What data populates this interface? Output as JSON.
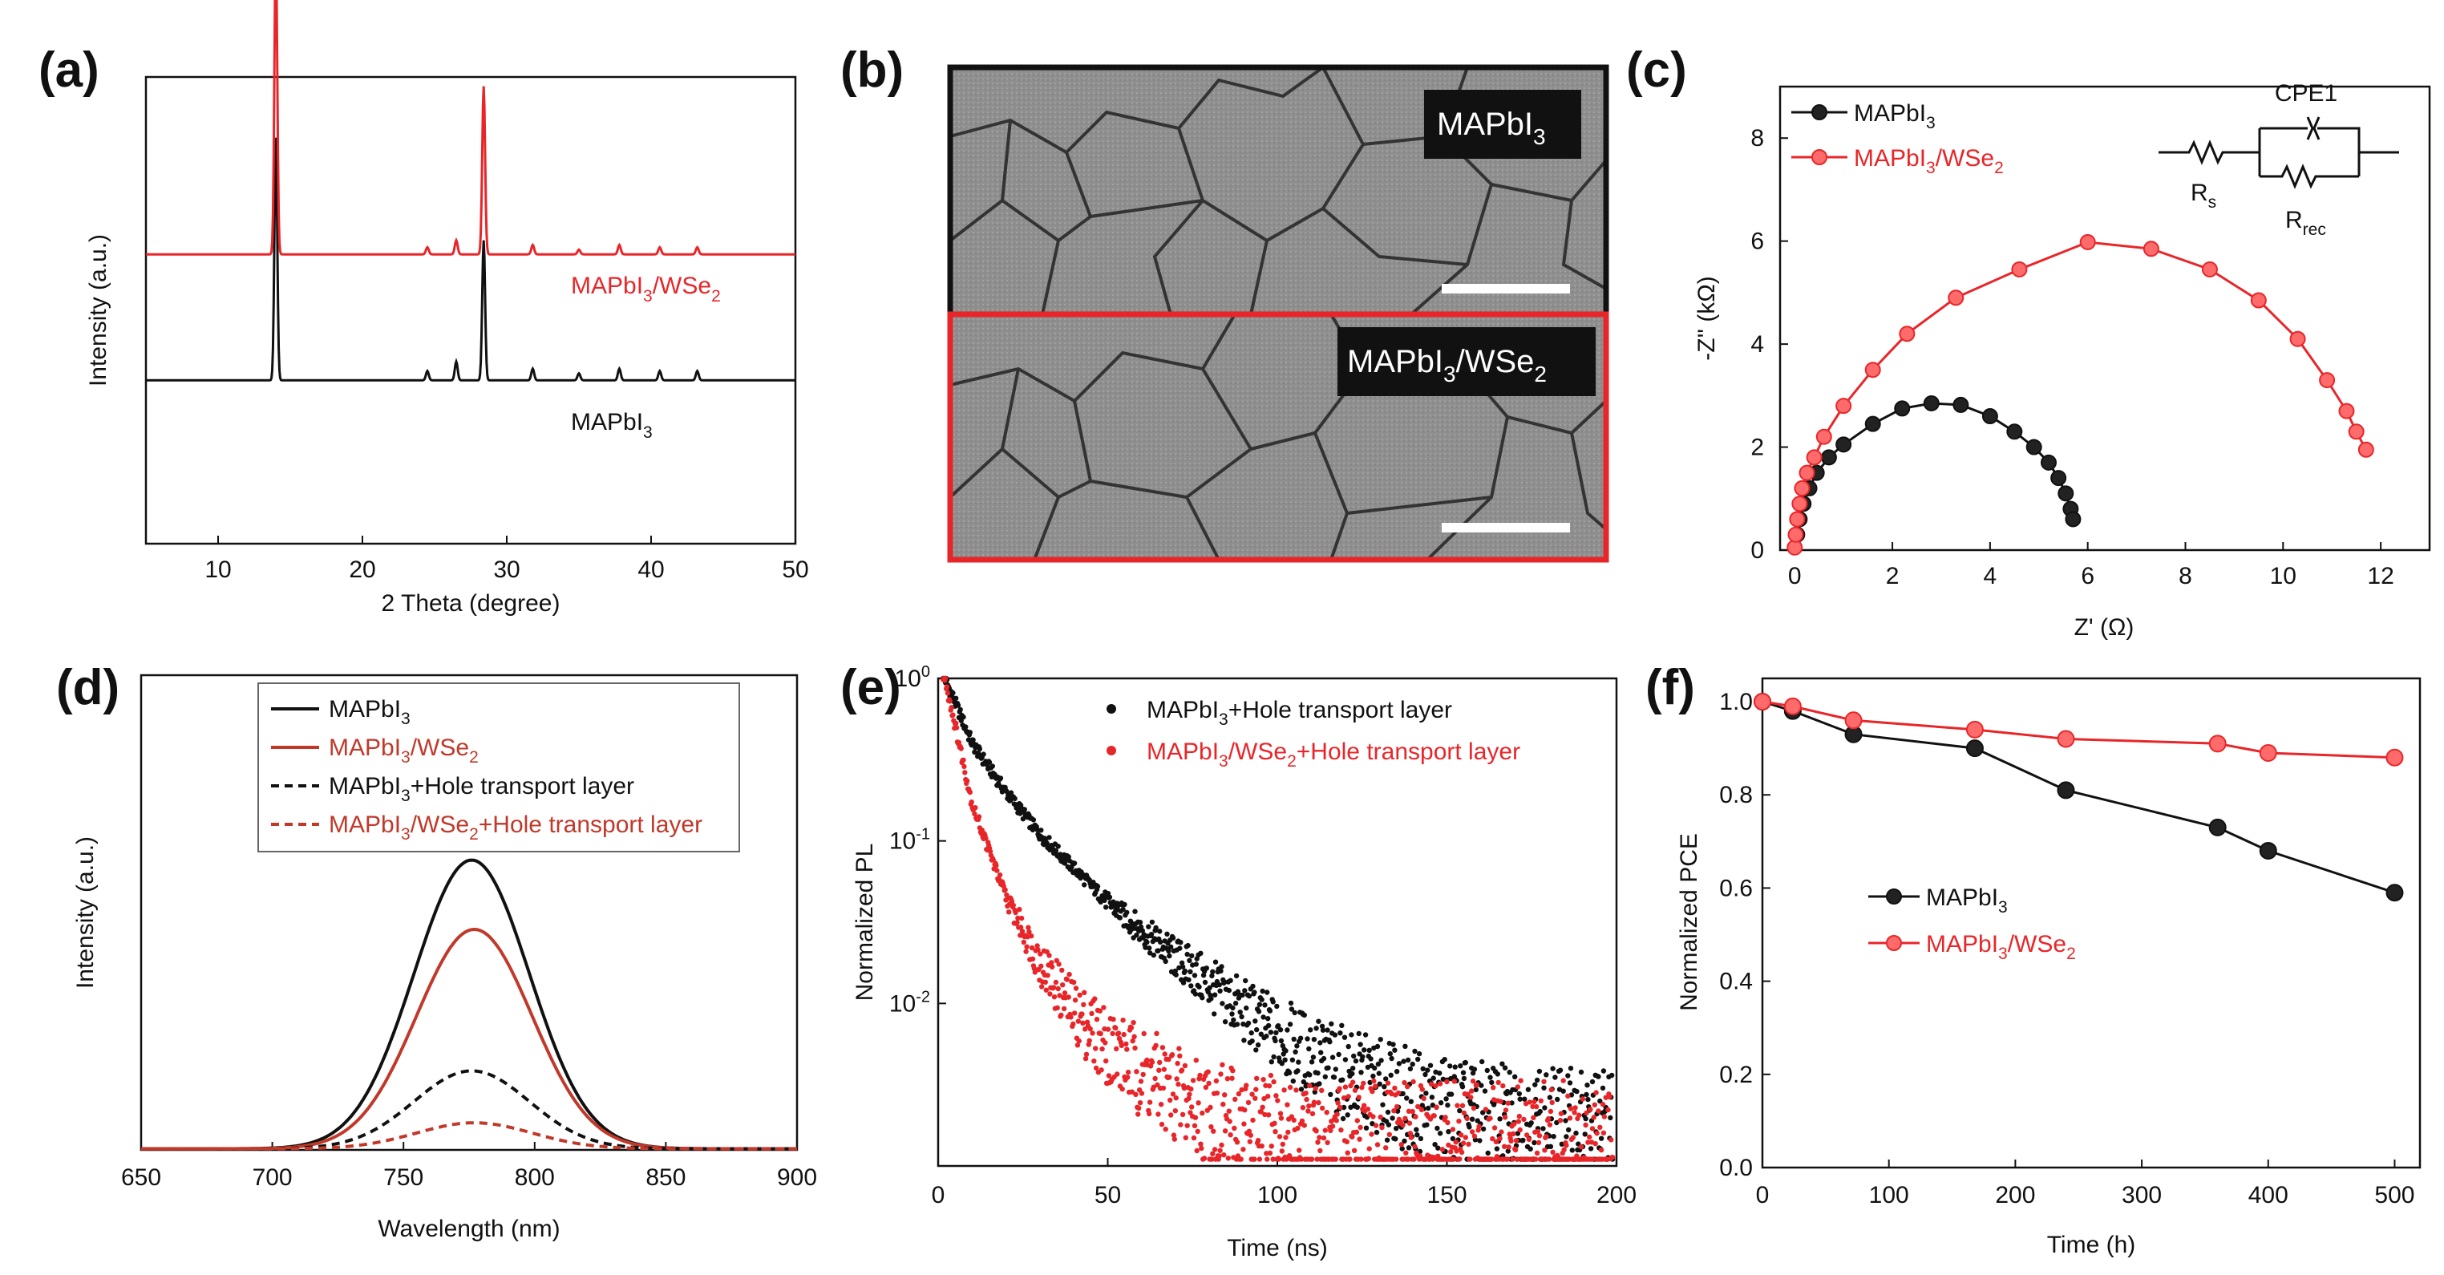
{
  "colors": {
    "black": "#111111",
    "red": "#e8262a",
    "dark_red": "#c0392b",
    "sem_label_bg": "#111111"
  },
  "panels": {
    "a": "(a)",
    "b": "(b)",
    "c": "(c)",
    "d": "(d)",
    "e": "(e)",
    "f": "(f)"
  },
  "sem_images": {
    "top": {
      "label": "MAPbI",
      "sub": "3",
      "frame_color": "#111111"
    },
    "bottom": {
      "label": "MAPbI",
      "sub1": "3",
      "mid": "/WSe",
      "sub2": "2",
      "frame_color": "#e8262a"
    }
  },
  "chart_data": [
    {
      "id": "a",
      "type": "line",
      "title": "",
      "xlabel": "2 Theta (degree)",
      "ylabel": "Intensity (a.u.)",
      "xlim": [
        5,
        50
      ],
      "xticks": [
        10,
        20,
        30,
        40,
        50
      ],
      "series": [
        {
          "name": "MAPbI3",
          "label_main": "MAPbI",
          "label_sub": "3",
          "color": "#111111",
          "baseline": 0.35,
          "peaks": [
            [
              14.0,
              0.52
            ],
            [
              24.5,
              0.02
            ],
            [
              26.5,
              0.04
            ],
            [
              28.4,
              0.3
            ],
            [
              31.8,
              0.025
            ],
            [
              35.0,
              0.015
            ],
            [
              37.8,
              0.025
            ],
            [
              40.6,
              0.02
            ],
            [
              43.2,
              0.02
            ]
          ]
        },
        {
          "name": "MAPbI3/WSe2",
          "label_main": "MAPbI",
          "label_sub": "3",
          "label_mid": "/WSe",
          "label_sub2": "2",
          "color": "#e8262a",
          "baseline": 0.62,
          "peaks": [
            [
              14.0,
              0.66
            ],
            [
              24.5,
              0.015
            ],
            [
              26.5,
              0.03
            ],
            [
              28.4,
              0.36
            ],
            [
              31.8,
              0.02
            ],
            [
              35.0,
              0.01
            ],
            [
              37.8,
              0.02
            ],
            [
              40.6,
              0.015
            ],
            [
              43.2,
              0.015
            ]
          ]
        }
      ]
    },
    {
      "id": "c",
      "type": "scatter",
      "title": "",
      "xlabel": "Z' (Ω)",
      "ylabel": "-Z'' (kΩ)",
      "xlim": [
        -0.3,
        13
      ],
      "ylim": [
        0,
        9
      ],
      "xticks": [
        0,
        2,
        4,
        6,
        8,
        10,
        12
      ],
      "yticks": [
        0,
        2,
        4,
        6,
        8
      ],
      "circuit": {
        "top": "CPE1",
        "left_main": "R",
        "left_sub": "s",
        "right_main": "R",
        "right_sub": "rec"
      },
      "series": [
        {
          "name": "MAPbI3",
          "label_main": "MAPbI",
          "label_sub": "3",
          "color": "#111111",
          "x": [
            0.05,
            0.1,
            0.18,
            0.3,
            0.45,
            0.7,
            1.0,
            1.6,
            2.2,
            2.8,
            3.4,
            4.0,
            4.5,
            4.9,
            5.2,
            5.4,
            5.55,
            5.65,
            5.7
          ],
          "y": [
            0.3,
            0.6,
            0.9,
            1.2,
            1.5,
            1.8,
            2.05,
            2.45,
            2.75,
            2.85,
            2.82,
            2.6,
            2.3,
            2.0,
            1.7,
            1.4,
            1.1,
            0.8,
            0.6
          ]
        },
        {
          "name": "MAPbI3/WSe2",
          "label_main": "MAPbI",
          "label_sub": "3",
          "label_mid": "/WSe",
          "label_sub2": "2",
          "color": "#e8262a",
          "x": [
            0.0,
            0.02,
            0.05,
            0.1,
            0.15,
            0.25,
            0.4,
            0.6,
            1.0,
            1.6,
            2.3,
            3.3,
            4.6,
            6.0,
            7.3,
            8.5,
            9.5,
            10.3,
            10.9,
            11.3,
            11.5,
            11.7
          ],
          "y": [
            0.05,
            0.3,
            0.6,
            0.9,
            1.2,
            1.5,
            1.8,
            2.2,
            2.8,
            3.5,
            4.2,
            4.9,
            5.45,
            5.98,
            5.85,
            5.45,
            4.85,
            4.1,
            3.3,
            2.7,
            2.3,
            1.95
          ]
        }
      ]
    },
    {
      "id": "d",
      "type": "line",
      "title": "",
      "xlabel": "Wavelength (nm)",
      "ylabel": "Intensity (a.u.)",
      "xlim": [
        650,
        900
      ],
      "xticks": [
        650,
        700,
        750,
        800,
        850,
        900
      ],
      "series": [
        {
          "name": "MAPbI3",
          "label_main": "MAPbI",
          "label_sub": "3",
          "color": "#111111",
          "style": "solid",
          "center": 776,
          "sigma": 22,
          "amplitude": 1.0
        },
        {
          "name": "MAPbI3/WSe2",
          "label_main": "MAPbI",
          "label_sub": "3",
          "label_mid": "/WSe",
          "label_sub2": "2",
          "color": "#c0392b",
          "style": "solid",
          "center": 777,
          "sigma": 22,
          "amplitude": 0.76
        },
        {
          "name": "MAPbI3+Hole transport layer",
          "label_main": "MAPbI",
          "label_sub": "3",
          "label_tail": "+Hole transport layer",
          "color": "#111111",
          "style": "dashed",
          "center": 776,
          "sigma": 22,
          "amplitude": 0.27
        },
        {
          "name": "MAPbI3/WSe2+Hole transport layer",
          "label_main": "MAPbI",
          "label_sub": "3",
          "label_mid": "/WSe",
          "label_sub2": "2",
          "label_tail": "+Hole transport layer",
          "color": "#c0392b",
          "style": "dashed",
          "center": 777,
          "sigma": 22,
          "amplitude": 0.09
        }
      ]
    },
    {
      "id": "e",
      "type": "scatter",
      "title": "",
      "xlabel": "Time (ns)",
      "ylabel": "Normalized PL",
      "yscale": "log",
      "xlim": [
        0,
        200
      ],
      "ylim": [
        0.001,
        1
      ],
      "xticks": [
        0,
        50,
        100,
        150,
        200
      ],
      "yticks": [
        1,
        0.1,
        0.01
      ],
      "ytick_labels": [
        {
          "base": "10",
          "exp": "0"
        },
        {
          "base": "10",
          "exp": "-1"
        },
        {
          "base": "10",
          "exp": "-2"
        }
      ],
      "series": [
        {
          "name": "MAPbI3+Hole transport layer",
          "label_main": "MAPbI",
          "label_sub": "3",
          "label_tail": "+Hole transport layer",
          "color": "#111111",
          "t": [
            2,
            10,
            20,
            30,
            40,
            50,
            60,
            70,
            80,
            90,
            100,
            110,
            120,
            130,
            140,
            150,
            160,
            170,
            180,
            190,
            200
          ],
          "y": [
            1.0,
            0.4,
            0.2,
            0.11,
            0.068,
            0.042,
            0.028,
            0.019,
            0.013,
            0.009,
            0.0064,
            0.0048,
            0.0037,
            0.003,
            0.0025,
            0.0022,
            0.002,
            0.0019,
            0.0018,
            0.0018,
            0.0018
          ]
        },
        {
          "name": "MAPbI3/WSe2+Hole transport layer",
          "label_main": "MAPbI",
          "label_sub": "3",
          "label_mid": "/WSe",
          "label_sub2": "2",
          "label_tail": "+Hole transport layer",
          "color": "#e8262a",
          "t": [
            2,
            10,
            20,
            30,
            40,
            50,
            60,
            70,
            80,
            90,
            100,
            110,
            120,
            130,
            140,
            150,
            160,
            170,
            180,
            190,
            200
          ],
          "y": [
            1.0,
            0.17,
            0.045,
            0.018,
            0.009,
            0.0055,
            0.0038,
            0.0028,
            0.0021,
            0.0017,
            0.0015,
            0.0014,
            0.0014,
            0.0014,
            0.0014,
            0.0014,
            0.0014,
            0.0014,
            0.0014,
            0.0014,
            0.0014
          ]
        }
      ]
    },
    {
      "id": "f",
      "type": "line",
      "title": "",
      "xlabel": "Time (h)",
      "ylabel": "Normalized PCE",
      "xlim": [
        0,
        520
      ],
      "ylim": [
        0,
        1.05
      ],
      "xticks": [
        0,
        100,
        200,
        300,
        400,
        500
      ],
      "yticks": [
        0.0,
        0.2,
        0.4,
        0.6,
        0.8,
        1.0
      ],
      "series": [
        {
          "name": "MAPbI3",
          "label_main": "MAPbI",
          "label_sub": "3",
          "color": "#111111",
          "x": [
            0,
            24,
            72,
            168,
            240,
            360,
            400,
            500
          ],
          "y": [
            1.0,
            0.98,
            0.93,
            0.9,
            0.81,
            0.73,
            0.68,
            0.59
          ]
        },
        {
          "name": "MAPbI3/WSe2",
          "label_main": "MAPbI",
          "label_sub": "3",
          "label_mid": "/WSe",
          "label_sub2": "2",
          "color": "#e8262a",
          "x": [
            0,
            24,
            72,
            168,
            240,
            360,
            400,
            500
          ],
          "y": [
            1.0,
            0.99,
            0.96,
            0.94,
            0.92,
            0.91,
            0.89,
            0.88
          ]
        }
      ]
    }
  ]
}
